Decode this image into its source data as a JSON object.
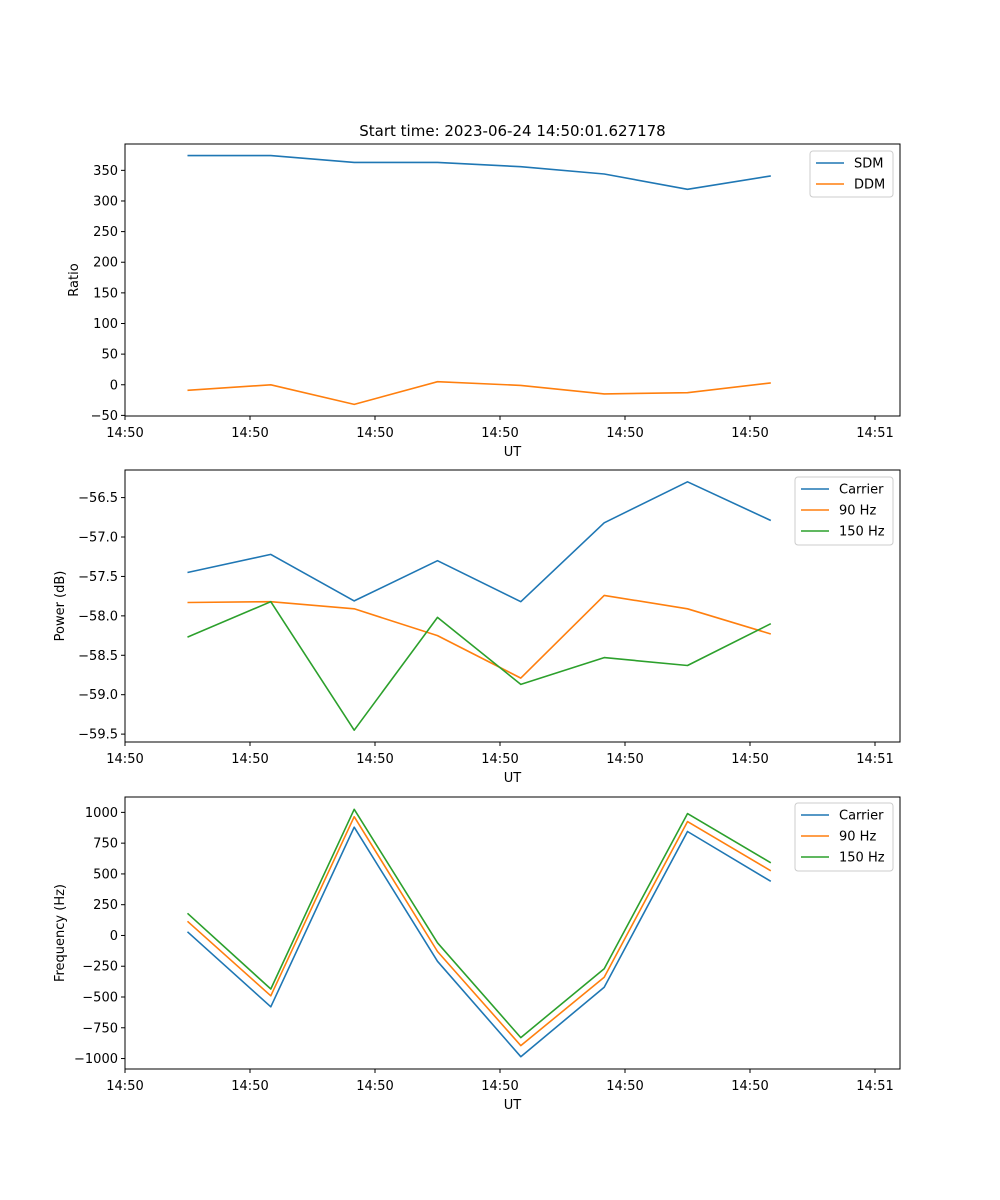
{
  "chart_data": [
    {
      "type": "line",
      "title": "Start time: 2023-06-24 14:50:01.627178",
      "xlabel": "UT",
      "ylabel": "Ratio",
      "xlim": [
        0,
        9.3
      ],
      "ylim": [
        -51,
        393
      ],
      "x_ticks": [
        {
          "x": 0,
          "label": "14:50"
        },
        {
          "x": 1.5,
          "label": "14:50"
        },
        {
          "x": 3,
          "label": "14:50"
        },
        {
          "x": 4.5,
          "label": "14:50"
        },
        {
          "x": 6,
          "label": "14:50"
        },
        {
          "x": 7.5,
          "label": "14:50"
        },
        {
          "x": 9,
          "label": "14:51"
        }
      ],
      "y_ticks": [
        -50,
        0,
        50,
        100,
        150,
        200,
        250,
        300,
        350
      ],
      "legend": "top-right",
      "x": [
        0.75,
        1.75,
        2.75,
        3.75,
        4.75,
        5.75,
        6.75,
        7.75
      ],
      "series": [
        {
          "name": "SDM",
          "color": "#1f77b4",
          "values": [
            374,
            374,
            363,
            363,
            356,
            344,
            319,
            341
          ]
        },
        {
          "name": "DDM",
          "color": "#ff7f0e",
          "values": [
            -9,
            0,
            -32,
            5,
            -1,
            -15,
            -13,
            3
          ]
        }
      ]
    },
    {
      "type": "line",
      "title": "",
      "xlabel": "UT",
      "ylabel": "Power (dB)",
      "xlim": [
        0,
        9.3
      ],
      "ylim": [
        -59.6,
        -56.15
      ],
      "x_ticks": [
        {
          "x": 0,
          "label": "14:50"
        },
        {
          "x": 1.5,
          "label": "14:50"
        },
        {
          "x": 3,
          "label": "14:50"
        },
        {
          "x": 4.5,
          "label": "14:50"
        },
        {
          "x": 6,
          "label": "14:50"
        },
        {
          "x": 7.5,
          "label": "14:50"
        },
        {
          "x": 9,
          "label": "14:51"
        }
      ],
      "y_ticks": [
        -59.5,
        -59.0,
        -58.5,
        -58.0,
        -57.5,
        -57.0,
        -56.5
      ],
      "legend": "top-right",
      "x": [
        0.75,
        1.75,
        2.75,
        3.75,
        4.75,
        5.75,
        6.75,
        7.75
      ],
      "series": [
        {
          "name": "Carrier",
          "color": "#1f77b4",
          "values": [
            -57.45,
            -57.22,
            -57.81,
            -57.3,
            -57.82,
            -56.82,
            -56.3,
            -56.79
          ]
        },
        {
          "name": "90 Hz",
          "color": "#ff7f0e",
          "values": [
            -57.83,
            -57.82,
            -57.91,
            -58.25,
            -58.79,
            -57.74,
            -57.91,
            -58.23
          ]
        },
        {
          "name": "150 Hz",
          "color": "#2ca02c",
          "values": [
            -58.27,
            -57.82,
            -59.45,
            -58.02,
            -58.87,
            -58.53,
            -58.63,
            -58.1
          ]
        }
      ]
    },
    {
      "type": "line",
      "title": "",
      "xlabel": "UT",
      "ylabel": "Frequency (Hz)",
      "xlim": [
        0,
        9.3
      ],
      "ylim": [
        -1085,
        1125
      ],
      "x_ticks": [
        {
          "x": 0,
          "label": "14:50"
        },
        {
          "x": 1.5,
          "label": "14:50"
        },
        {
          "x": 3,
          "label": "14:50"
        },
        {
          "x": 4.5,
          "label": "14:50"
        },
        {
          "x": 6,
          "label": "14:50"
        },
        {
          "x": 7.5,
          "label": "14:50"
        },
        {
          "x": 9,
          "label": "14:51"
        }
      ],
      "y_ticks": [
        -1000,
        -750,
        -500,
        -250,
        0,
        250,
        500,
        750,
        1000
      ],
      "legend": "top-right",
      "x": [
        0.75,
        1.75,
        2.75,
        3.75,
        4.75,
        5.75,
        6.75,
        7.75
      ],
      "series": [
        {
          "name": "Carrier",
          "color": "#1f77b4",
          "values": [
            30,
            -580,
            880,
            -210,
            -985,
            -420,
            845,
            440
          ]
        },
        {
          "name": "90 Hz",
          "color": "#ff7f0e",
          "values": [
            115,
            -490,
            965,
            -130,
            -895,
            -340,
            925,
            525
          ]
        },
        {
          "name": "150 Hz",
          "color": "#2ca02c",
          "values": [
            180,
            -435,
            1025,
            -60,
            -830,
            -270,
            990,
            590
          ]
        }
      ]
    }
  ]
}
